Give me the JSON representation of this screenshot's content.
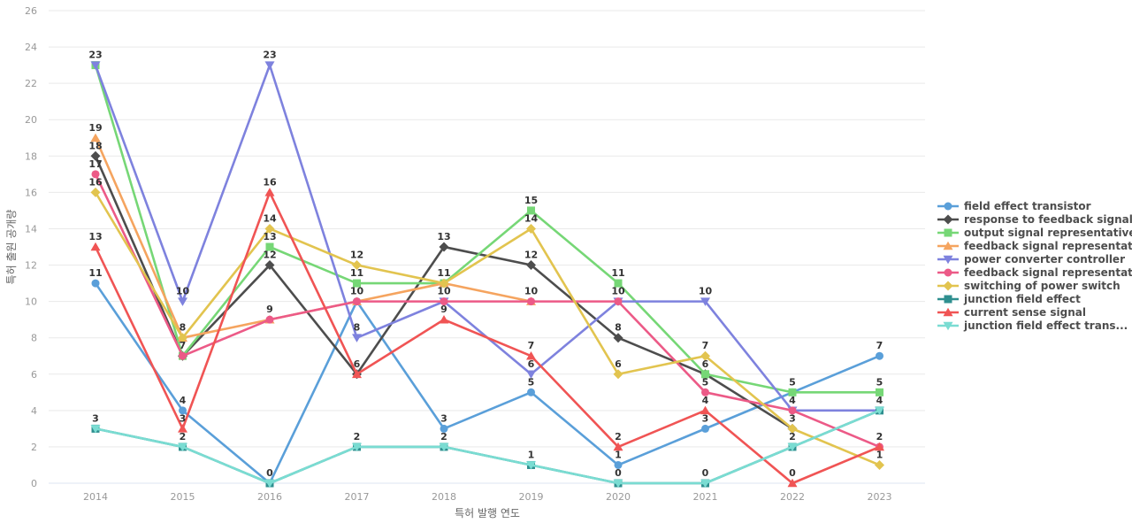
{
  "chart_data": {
    "type": "line",
    "title": "",
    "xlabel": "특허 발행 연도",
    "ylabel": "특허 출원 공개량",
    "x": [
      2014,
      2015,
      2016,
      2017,
      2018,
      2019,
      2020,
      2021,
      2022,
      2023
    ],
    "ylim": [
      0,
      26
    ],
    "yticks": [
      0,
      2,
      4,
      6,
      8,
      10,
      12,
      14,
      16,
      18,
      20,
      22,
      24,
      26
    ],
    "grid": true,
    "legend_position": "right",
    "series": [
      {
        "name": "field effect transistor",
        "color": "#5A9FD9",
        "marker": "circle",
        "values": [
          11,
          4,
          0,
          10,
          3,
          5,
          1,
          3,
          5,
          7
        ]
      },
      {
        "name": "response to feedback signal",
        "color": "#4D4D4D",
        "marker": "diamond",
        "values": [
          18,
          7,
          12,
          6,
          13,
          12,
          8,
          6,
          3,
          null
        ]
      },
      {
        "name": "output signal representative",
        "color": "#76D776",
        "marker": "square",
        "values": [
          23,
          7,
          13,
          11,
          11,
          15,
          11,
          6,
          5,
          5
        ]
      },
      {
        "name": "feedback signal representative",
        "color": "#F5A45F",
        "marker": "triangle-up",
        "values": [
          19,
          8,
          9,
          10,
          11,
          10,
          null,
          null,
          null,
          null
        ]
      },
      {
        "name": "power converter controller",
        "color": "#7E82DE",
        "marker": "triangle-down",
        "values": [
          23,
          10,
          23,
          8,
          10,
          6,
          10,
          10,
          4,
          4
        ]
      },
      {
        "name": "feedback signal representat...",
        "color": "#EC5A87",
        "marker": "circle",
        "values": [
          17,
          7,
          9,
          10,
          10,
          10,
          10,
          5,
          4,
          2
        ]
      },
      {
        "name": "switching of power switch",
        "color": "#E2C44F",
        "marker": "diamond",
        "values": [
          16,
          8,
          14,
          12,
          11,
          14,
          6,
          7,
          3,
          1
        ]
      },
      {
        "name": "junction field effect",
        "color": "#2F8F8F",
        "marker": "square",
        "values": [
          3,
          2,
          0,
          2,
          2,
          1,
          0,
          0,
          2,
          4
        ]
      },
      {
        "name": "current sense signal",
        "color": "#F05454",
        "marker": "triangle-up",
        "values": [
          13,
          3,
          16,
          6,
          9,
          7,
          2,
          4,
          0,
          2
        ]
      },
      {
        "name": "junction field effect trans...",
        "color": "#7ADCD2",
        "marker": "triangle-down",
        "values": [
          3,
          2,
          0,
          2,
          2,
          1,
          0,
          0,
          2,
          4
        ]
      }
    ],
    "colors": {
      "grid_line": "#e9e9e9",
      "zero_line": "#dde6f2",
      "tick_label": "#999999",
      "axis_title": "#666666",
      "data_label": "#333333"
    }
  }
}
